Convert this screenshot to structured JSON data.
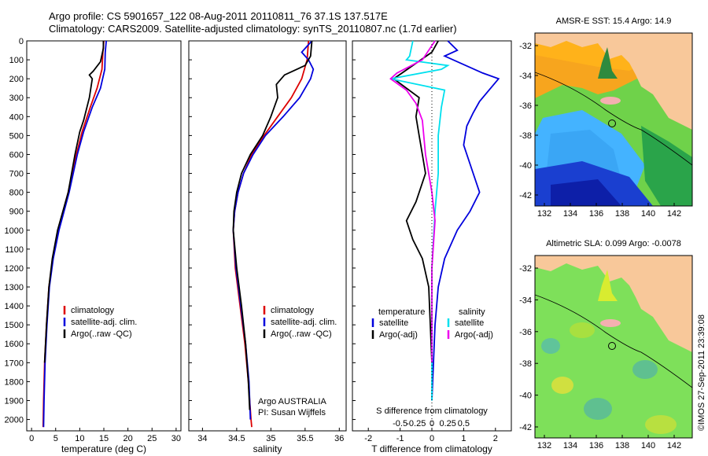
{
  "title_line1": "Argo profile: CS 5901657_122 08-Aug-2011 20110811_76 37.1S 137.517E",
  "title_line2": "Climatology: CARS2009. Satellite-adjusted climatology: synTS_20110807.nc (1.7d earlier)",
  "footer_stamp": "©IMOS 27-Sep-2011 23:39:08",
  "colors": {
    "red": "#dd0000",
    "blue": "#0000dd",
    "black": "#000000",
    "cyan": "#00e0ee",
    "magenta": "#ee00ee"
  },
  "chart_data": [
    {
      "id": "temperature",
      "type": "line",
      "xlabel": "temperature (deg C)",
      "xlim": [
        -1,
        31
      ],
      "ylim": [
        2060,
        0
      ],
      "xticks": [
        0,
        5,
        10,
        15,
        20,
        25,
        30
      ],
      "yticks": [
        0,
        100,
        200,
        300,
        400,
        500,
        600,
        700,
        800,
        900,
        1000,
        1100,
        1200,
        1300,
        1400,
        1500,
        1600,
        1700,
        1800,
        1900,
        2000
      ],
      "legend": [
        {
          "label": "climatology",
          "color": "#dd0000"
        },
        {
          "label": "satellite-adj. clim.",
          "color": "#0000dd"
        },
        {
          "label": "Argo(..raw -QC)",
          "color": "#000000"
        }
      ],
      "series": [
        {
          "name": "climatology",
          "color": "#dd0000",
          "points": [
            [
              15.0,
              0
            ],
            [
              14.8,
              60
            ],
            [
              14.6,
              150
            ],
            [
              13.6,
              250
            ],
            [
              12.2,
              350
            ],
            [
              10.5,
              480
            ],
            [
              9.3,
              600
            ],
            [
              7.6,
              800
            ],
            [
              5.5,
              1000
            ],
            [
              4.4,
              1150
            ],
            [
              3.6,
              1300
            ],
            [
              3.1,
              1500
            ],
            [
              2.7,
              1700
            ],
            [
              2.5,
              1900
            ],
            [
              2.4,
              2040
            ]
          ]
        },
        {
          "name": "satellite-adj. clim.",
          "color": "#0000dd",
          "points": [
            [
              15.5,
              0
            ],
            [
              15.3,
              60
            ],
            [
              15.2,
              150
            ],
            [
              14.3,
              250
            ],
            [
              12.6,
              350
            ],
            [
              10.8,
              480
            ],
            [
              9.5,
              600
            ],
            [
              7.8,
              800
            ],
            [
              5.7,
              1000
            ],
            [
              4.5,
              1150
            ],
            [
              3.7,
              1300
            ],
            [
              3.2,
              1500
            ],
            [
              2.8,
              1700
            ],
            [
              2.6,
              1900
            ],
            [
              2.5,
              2040
            ]
          ]
        },
        {
          "name": "Argo(..raw -QC)",
          "color": "#000000",
          "points": [
            [
              14.9,
              0
            ],
            [
              14.9,
              40
            ],
            [
              14.3,
              110
            ],
            [
              12.8,
              160
            ],
            [
              12.0,
              180
            ],
            [
              12.6,
              200
            ],
            [
              12.0,
              300
            ],
            [
              10.8,
              420
            ],
            [
              10.0,
              480
            ],
            [
              9.0,
              600
            ],
            [
              7.6,
              800
            ],
            [
              5.4,
              1000
            ],
            [
              4.3,
              1150
            ],
            [
              3.6,
              1300
            ],
            [
              3.1,
              1500
            ],
            [
              2.7,
              1700
            ]
          ]
        }
      ]
    },
    {
      "id": "salinity",
      "type": "line",
      "xlabel": "salinity",
      "xlim": [
        33.8,
        36.1
      ],
      "ylim": [
        2060,
        0
      ],
      "xticks": [
        34,
        34.5,
        35,
        35.5,
        36
      ],
      "legend": [
        {
          "label": "climatology",
          "color": "#dd0000"
        },
        {
          "label": "satellite-adj. clim.",
          "color": "#0000dd"
        },
        {
          "label": "Argo(..raw -QC)",
          "color": "#000000"
        }
      ],
      "annotations": [
        "Argo AUSTRALIA",
        "PI: Susan Wijffels"
      ],
      "series": [
        {
          "name": "climatology",
          "color": "#dd0000",
          "points": [
            [
              35.55,
              0
            ],
            [
              35.53,
              100
            ],
            [
              35.45,
              200
            ],
            [
              35.3,
              300
            ],
            [
              35.1,
              400
            ],
            [
              34.9,
              500
            ],
            [
              34.72,
              600
            ],
            [
              34.6,
              700
            ],
            [
              34.52,
              800
            ],
            [
              34.47,
              900
            ],
            [
              34.45,
              1000
            ],
            [
              34.48,
              1200
            ],
            [
              34.55,
              1400
            ],
            [
              34.62,
              1600
            ],
            [
              34.67,
              1800
            ],
            [
              34.71,
              2000
            ],
            [
              34.72,
              2040
            ]
          ]
        },
        {
          "name": "satellite-adj. clim.",
          "color": "#0000dd",
          "points": [
            [
              35.6,
              0
            ],
            [
              35.45,
              60
            ],
            [
              35.55,
              100
            ],
            [
              35.62,
              150
            ],
            [
              35.58,
              200
            ],
            [
              35.42,
              300
            ],
            [
              35.18,
              400
            ],
            [
              34.92,
              500
            ],
            [
              34.74,
              600
            ],
            [
              34.6,
              700
            ],
            [
              34.52,
              800
            ],
            [
              34.47,
              900
            ],
            [
              34.45,
              1000
            ],
            [
              34.49,
              1200
            ],
            [
              34.56,
              1400
            ],
            [
              34.63,
              1600
            ],
            [
              34.68,
              1800
            ],
            [
              34.7,
              2000
            ]
          ]
        },
        {
          "name": "Argo(..raw -QC)",
          "color": "#000000",
          "points": [
            [
              35.6,
              0
            ],
            [
              35.58,
              80
            ],
            [
              35.5,
              130
            ],
            [
              35.2,
              180
            ],
            [
              35.08,
              230
            ],
            [
              35.1,
              300
            ],
            [
              35.0,
              400
            ],
            [
              34.88,
              500
            ],
            [
              34.7,
              600
            ],
            [
              34.57,
              700
            ],
            [
              34.5,
              800
            ],
            [
              34.46,
              900
            ],
            [
              34.45,
              1000
            ],
            [
              34.5,
              1200
            ],
            [
              34.57,
              1400
            ],
            [
              34.63,
              1600
            ],
            [
              34.67,
              1800
            ],
            [
              34.69,
              1950
            ]
          ]
        }
      ]
    },
    {
      "id": "difference",
      "type": "line",
      "xlabel": "T difference from climatology",
      "xlabel2": "S difference from climatology",
      "xlim": [
        -2.5,
        2.5
      ],
      "ylim": [
        2060,
        0
      ],
      "xticks": [
        -2,
        -1,
        0,
        1,
        2
      ],
      "xticks2": [
        "-0.5",
        "-0.25",
        "0",
        "0.25",
        "0.5"
      ],
      "legend_temperature_header": "temperature",
      "legend_salinity_header": "salinity",
      "legend": [
        {
          "label": "satellite",
          "color": "#0000dd",
          "group": "temperature"
        },
        {
          "label": "Argo(-adj)",
          "color": "#000000",
          "group": "temperature"
        },
        {
          "label": "satellite",
          "color": "#00e0ee",
          "group": "salinity"
        },
        {
          "label": "Argo(-adj)",
          "color": "#ee00ee",
          "group": "salinity"
        }
      ],
      "series": [
        {
          "name": "T satellite",
          "color": "#0000dd",
          "points": [
            [
              0.5,
              0
            ],
            [
              0.8,
              50
            ],
            [
              0.4,
              80
            ],
            [
              1.6,
              170
            ],
            [
              2.1,
              200
            ],
            [
              1.8,
              260
            ],
            [
              1.5,
              320
            ],
            [
              1.3,
              380
            ],
            [
              1.1,
              450
            ],
            [
              1.0,
              550
            ],
            [
              1.3,
              700
            ],
            [
              1.5,
              800
            ],
            [
              1.2,
              900
            ],
            [
              0.8,
              1000
            ],
            [
              0.4,
              1150
            ],
            [
              0.2,
              1300
            ],
            [
              0.1,
              1500
            ],
            [
              0.05,
              1700
            ],
            [
              0.0,
              1900
            ]
          ]
        },
        {
          "name": "T Argo(-adj)",
          "color": "#000000",
          "points": [
            [
              0.2,
              0
            ],
            [
              0.0,
              60
            ],
            [
              -1.2,
              200
            ],
            [
              -0.4,
              300
            ],
            [
              -0.5,
              400
            ],
            [
              -0.4,
              500
            ],
            [
              -0.3,
              600
            ],
            [
              -0.2,
              700
            ],
            [
              -0.5,
              850
            ],
            [
              -0.8,
              950
            ],
            [
              -0.6,
              1050
            ],
            [
              -0.3,
              1150
            ],
            [
              -0.1,
              1300
            ],
            [
              -0.05,
              1500
            ],
            [
              0.0,
              1700
            ]
          ]
        },
        {
          "name": "S satellite",
          "color": "#00e0ee",
          "points": [
            [
              -0.6,
              0
            ],
            [
              -0.7,
              80
            ],
            [
              -0.8,
              100
            ],
            [
              0.5,
              130
            ],
            [
              0.3,
              150
            ],
            [
              -1.3,
              200
            ],
            [
              0.4,
              260
            ],
            [
              0.3,
              350
            ],
            [
              0.2,
              500
            ],
            [
              0.2,
              700
            ],
            [
              0.1,
              900
            ],
            [
              0.0,
              1200
            ],
            [
              0.0,
              1600
            ],
            [
              0.0,
              1900
            ]
          ]
        },
        {
          "name": "S Argo(-adj)",
          "color": "#ee00ee",
          "points": [
            [
              0.1,
              0
            ],
            [
              -0.3,
              100
            ],
            [
              -1.1,
              170
            ],
            [
              -1.3,
              200
            ],
            [
              -0.8,
              260
            ],
            [
              -0.5,
              330
            ],
            [
              -0.3,
              420
            ],
            [
              -0.2,
              600
            ],
            [
              0.0,
              800
            ],
            [
              0.1,
              950
            ],
            [
              0.0,
              1200
            ],
            [
              0.0,
              1500
            ],
            [
              0.0,
              1700
            ]
          ]
        }
      ]
    },
    {
      "id": "sst_map",
      "type": "heatmap",
      "title": "AMSR-E SST: 15.4 Argo: 14.9",
      "xticks": [
        "132",
        "134",
        "136",
        "138",
        "140",
        "142"
      ],
      "yticks": [
        "-32",
        "-34",
        "-36",
        "-38",
        "-40",
        "-42"
      ]
    },
    {
      "id": "sla_map",
      "type": "heatmap",
      "title": "Altimetric SLA: 0.099 Argo: -0.0078",
      "xticks": [
        "132",
        "134",
        "136",
        "138",
        "140",
        "142"
      ],
      "yticks": [
        "-32",
        "-34",
        "-36",
        "-38",
        "-40",
        "-42"
      ]
    }
  ]
}
